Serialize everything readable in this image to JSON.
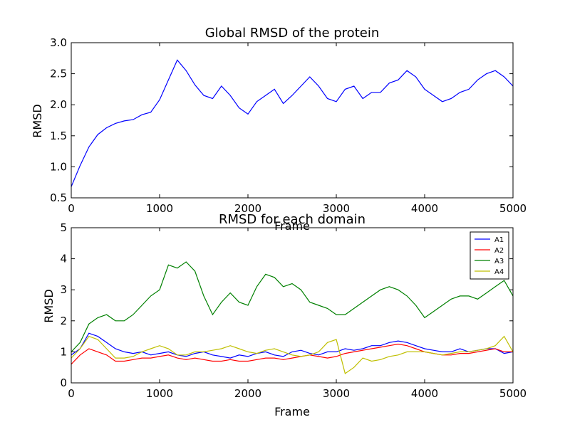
{
  "chart_data": [
    {
      "type": "line",
      "title": "Global RMSD of the protein",
      "xlabel": "Frame",
      "ylabel": "RMSD",
      "xlim": [
        0,
        5000
      ],
      "ylim": [
        0.5,
        3.0
      ],
      "xticks": [
        0,
        1000,
        2000,
        3000,
        4000,
        5000
      ],
      "xtick_labels": [
        "0",
        "1000",
        "2000",
        "3000",
        "4000",
        "5000"
      ],
      "yticks": [
        0.5,
        1.0,
        1.5,
        2.0,
        2.5,
        3.0
      ],
      "ytick_labels": [
        "0.5",
        "1.0",
        "1.5",
        "2.0",
        "2.5",
        "3.0"
      ],
      "grid": false,
      "legend": null,
      "series": [
        {
          "color": "#0000ff",
          "x": [
            0,
            100,
            200,
            300,
            400,
            500,
            600,
            700,
            800,
            900,
            1000,
            1100,
            1200,
            1300,
            1400,
            1500,
            1600,
            1700,
            1800,
            1900,
            2000,
            2100,
            2200,
            2300,
            2400,
            2500,
            2600,
            2700,
            2800,
            2900,
            3000,
            3100,
            3200,
            3300,
            3400,
            3500,
            3600,
            3700,
            3800,
            3900,
            4000,
            4100,
            4200,
            4300,
            4400,
            4500,
            4600,
            4700,
            4800,
            4900,
            5000
          ],
          "y": [
            0.68,
            1.02,
            1.32,
            1.52,
            1.63,
            1.7,
            1.74,
            1.76,
            1.84,
            1.88,
            2.08,
            2.4,
            2.72,
            2.55,
            2.32,
            2.15,
            2.1,
            2.3,
            2.15,
            1.95,
            1.85,
            2.05,
            2.15,
            2.25,
            2.02,
            2.15,
            2.3,
            2.45,
            2.3,
            2.1,
            2.05,
            2.25,
            2.3,
            2.1,
            2.2,
            2.2,
            2.35,
            2.4,
            2.55,
            2.45,
            2.25,
            2.15,
            2.05,
            2.1,
            2.2,
            2.25,
            2.4,
            2.5,
            2.55,
            2.45,
            2.3
          ]
        }
      ]
    },
    {
      "type": "line",
      "title": "RMSD for each domain",
      "xlabel": "Frame",
      "ylabel": "RMSD",
      "xlim": [
        0,
        5000
      ],
      "ylim": [
        0,
        5
      ],
      "xticks": [
        0,
        1000,
        2000,
        3000,
        4000,
        5000
      ],
      "xtick_labels": [
        "0",
        "1000",
        "2000",
        "3000",
        "4000",
        "5000"
      ],
      "yticks": [
        0,
        1,
        2,
        3,
        4,
        5
      ],
      "ytick_labels": [
        "0",
        "1",
        "2",
        "3",
        "4",
        "5"
      ],
      "grid": false,
      "legend": "top-right",
      "series": [
        {
          "name": "A1",
          "color": "#0000ff",
          "x": [
            0,
            100,
            200,
            300,
            400,
            500,
            600,
            700,
            800,
            900,
            1000,
            1100,
            1200,
            1300,
            1400,
            1500,
            1600,
            1700,
            1800,
            1900,
            2000,
            2100,
            2200,
            2300,
            2400,
            2500,
            2600,
            2700,
            2800,
            2900,
            3000,
            3100,
            3200,
            3300,
            3400,
            3500,
            3600,
            3700,
            3800,
            3900,
            4000,
            4100,
            4200,
            4300,
            4400,
            4500,
            4600,
            4700,
            4800,
            4900,
            5000
          ],
          "y": [
            0.9,
            1.1,
            1.6,
            1.5,
            1.3,
            1.1,
            1.0,
            0.95,
            1.0,
            0.9,
            0.95,
            1.0,
            0.9,
            0.85,
            0.95,
            1.0,
            0.9,
            0.85,
            0.8,
            0.9,
            0.85,
            0.95,
            1.0,
            0.9,
            0.85,
            1.0,
            1.05,
            0.95,
            0.9,
            1.0,
            1.0,
            1.1,
            1.05,
            1.1,
            1.2,
            1.2,
            1.3,
            1.35,
            1.3,
            1.2,
            1.1,
            1.05,
            1.0,
            1.0,
            1.1,
            1.0,
            1.05,
            1.1,
            1.1,
            0.95,
            1.0
          ]
        },
        {
          "name": "A2",
          "color": "#ff0000",
          "x": [
            0,
            100,
            200,
            300,
            400,
            500,
            600,
            700,
            800,
            900,
            1000,
            1100,
            1200,
            1300,
            1400,
            1500,
            1600,
            1700,
            1800,
            1900,
            2000,
            2100,
            2200,
            2300,
            2400,
            2500,
            2600,
            2700,
            2800,
            2900,
            3000,
            3100,
            3200,
            3300,
            3400,
            3500,
            3600,
            3700,
            3800,
            3900,
            4000,
            4100,
            4200,
            4300,
            4400,
            4500,
            4600,
            4700,
            4800,
            4900,
            5000
          ],
          "y": [
            0.6,
            0.9,
            1.1,
            1.0,
            0.9,
            0.7,
            0.7,
            0.75,
            0.8,
            0.8,
            0.85,
            0.9,
            0.8,
            0.75,
            0.8,
            0.75,
            0.7,
            0.7,
            0.75,
            0.7,
            0.7,
            0.75,
            0.8,
            0.8,
            0.75,
            0.8,
            0.85,
            0.9,
            0.85,
            0.8,
            0.85,
            0.95,
            1.0,
            1.05,
            1.1,
            1.15,
            1.2,
            1.25,
            1.2,
            1.1,
            1.0,
            0.95,
            0.9,
            0.9,
            0.95,
            0.95,
            1.0,
            1.05,
            1.1,
            1.0,
            1.0
          ]
        },
        {
          "name": "A3",
          "color": "#008000",
          "x": [
            0,
            100,
            200,
            300,
            400,
            500,
            600,
            700,
            800,
            900,
            1000,
            1100,
            1200,
            1300,
            1400,
            1500,
            1600,
            1700,
            1800,
            1900,
            2000,
            2100,
            2200,
            2300,
            2400,
            2500,
            2600,
            2700,
            2800,
            2900,
            3000,
            3100,
            3200,
            3300,
            3400,
            3500,
            3600,
            3700,
            3800,
            3900,
            4000,
            4100,
            4200,
            4300,
            4400,
            4500,
            4600,
            4700,
            4800,
            4900,
            5000
          ],
          "y": [
            1.0,
            1.3,
            1.9,
            2.1,
            2.2,
            2.0,
            2.0,
            2.2,
            2.5,
            2.8,
            3.0,
            3.8,
            3.7,
            3.9,
            3.6,
            2.8,
            2.2,
            2.6,
            2.9,
            2.6,
            2.5,
            3.1,
            3.5,
            3.4,
            3.1,
            3.2,
            3.0,
            2.6,
            2.5,
            2.4,
            2.2,
            2.2,
            2.4,
            2.6,
            2.8,
            3.0,
            3.1,
            3.0,
            2.8,
            2.5,
            2.1,
            2.3,
            2.5,
            2.7,
            2.8,
            2.8,
            2.7,
            2.9,
            3.1,
            3.3,
            2.8
          ]
        },
        {
          "name": "A4",
          "color": "#bfbf00",
          "x": [
            0,
            100,
            200,
            300,
            400,
            500,
            600,
            700,
            800,
            900,
            1000,
            1100,
            1200,
            1300,
            1400,
            1500,
            1600,
            1700,
            1800,
            1900,
            2000,
            2100,
            2200,
            2300,
            2400,
            2500,
            2600,
            2700,
            2800,
            2900,
            3000,
            3100,
            3200,
            3300,
            3400,
            3500,
            3600,
            3700,
            3800,
            3900,
            4000,
            4100,
            4200,
            4300,
            4400,
            4500,
            4600,
            4700,
            4800,
            4900,
            5000
          ],
          "y": [
            0.8,
            1.1,
            1.5,
            1.4,
            1.1,
            0.8,
            0.8,
            0.85,
            1.0,
            1.1,
            1.2,
            1.1,
            0.9,
            0.9,
            1.0,
            1.0,
            1.05,
            1.1,
            1.2,
            1.1,
            1.0,
            0.95,
            1.05,
            1.1,
            1.0,
            0.9,
            0.85,
            0.9,
            1.0,
            1.3,
            1.4,
            0.3,
            0.5,
            0.8,
            0.7,
            0.75,
            0.85,
            0.9,
            1.0,
            1.0,
            1.0,
            0.95,
            0.9,
            0.95,
            1.0,
            1.0,
            1.05,
            1.1,
            1.2,
            1.5,
            1.0
          ]
        }
      ]
    }
  ]
}
